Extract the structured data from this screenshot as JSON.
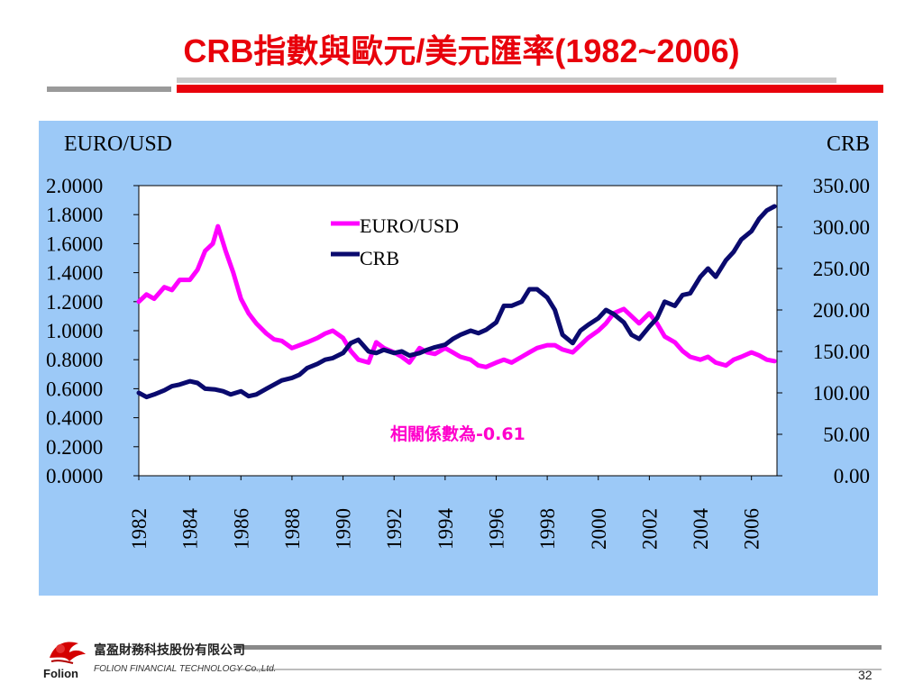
{
  "slide": {
    "title": "CRB指數與歐元/美元匯率(1982~2006)",
    "page_number": "32",
    "company_cn": "富盈財務科技股份有限公司",
    "company_en": "FOLION FINANCIAL TECHNOLOGY Co.,Ltd.",
    "brand": "Folion"
  },
  "colors": {
    "title": "#e8000b",
    "panel_bg": "#9cc9f7",
    "euro_line": "#ff00ff",
    "crb_line": "#0a0a6e",
    "annotation": "#ff00cc"
  },
  "chart_data": {
    "type": "line",
    "left_axis_title": "EURO/USD",
    "right_axis_title": "CRB",
    "left_ticks": [
      "2.0000",
      "1.8000",
      "1.6000",
      "1.4000",
      "1.2000",
      "1.0000",
      "0.8000",
      "0.6000",
      "0.4000",
      "0.2000",
      "0.0000"
    ],
    "right_ticks": [
      "350.00",
      "300.00",
      "250.00",
      "200.00",
      "150.00",
      "100.00",
      "50.00",
      "0.00"
    ],
    "x_ticks": [
      "1982",
      "1984",
      "1986",
      "1988",
      "1990",
      "1992",
      "1994",
      "1996",
      "1998",
      "2000",
      "2002",
      "2004",
      "2006"
    ],
    "left_ylim": [
      0,
      2
    ],
    "right_ylim": [
      0,
      350
    ],
    "xlim": [
      1982,
      2007
    ],
    "legend_position": "top-center-left",
    "annotation": "相關係數為-0.61",
    "series": [
      {
        "name": "EURO/USD",
        "axis": "left",
        "color": "#ff00ff",
        "x": [
          1982.0,
          1982.3,
          1982.6,
          1983.0,
          1983.3,
          1983.6,
          1984.0,
          1984.3,
          1984.6,
          1984.9,
          1985.1,
          1985.4,
          1985.7,
          1986.0,
          1986.3,
          1986.6,
          1987.0,
          1987.3,
          1987.6,
          1988.0,
          1988.3,
          1988.6,
          1989.0,
          1989.3,
          1989.6,
          1990.0,
          1990.3,
          1990.6,
          1991.0,
          1991.3,
          1991.6,
          1992.0,
          1992.3,
          1992.6,
          1993.0,
          1993.3,
          1993.6,
          1994.0,
          1994.3,
          1994.6,
          1995.0,
          1995.3,
          1995.6,
          1996.0,
          1996.3,
          1996.6,
          1997.0,
          1997.3,
          1997.6,
          1998.0,
          1998.3,
          1998.6,
          1999.0,
          1999.3,
          1999.6,
          2000.0,
          2000.3,
          2000.6,
          2001.0,
          2001.3,
          2001.6,
          2002.0,
          2002.3,
          2002.6,
          2003.0,
          2003.3,
          2003.6,
          2004.0,
          2004.3,
          2004.6,
          2005.0,
          2005.3,
          2005.6,
          2006.0,
          2006.3,
          2006.6,
          2006.9
        ],
        "values": [
          1.2,
          1.25,
          1.22,
          1.3,
          1.28,
          1.35,
          1.35,
          1.42,
          1.55,
          1.6,
          1.72,
          1.55,
          1.4,
          1.22,
          1.12,
          1.05,
          0.98,
          0.94,
          0.93,
          0.88,
          0.9,
          0.92,
          0.95,
          0.98,
          1.0,
          0.95,
          0.86,
          0.8,
          0.78,
          0.92,
          0.88,
          0.85,
          0.82,
          0.78,
          0.88,
          0.85,
          0.84,
          0.88,
          0.85,
          0.82,
          0.8,
          0.76,
          0.75,
          0.78,
          0.8,
          0.78,
          0.82,
          0.85,
          0.88,
          0.9,
          0.9,
          0.87,
          0.85,
          0.9,
          0.95,
          1.0,
          1.05,
          1.12,
          1.15,
          1.1,
          1.05,
          1.12,
          1.05,
          0.96,
          0.92,
          0.86,
          0.82,
          0.8,
          0.82,
          0.78,
          0.76,
          0.8,
          0.82,
          0.85,
          0.83,
          0.8,
          0.79
        ]
      },
      {
        "name": "CRB",
        "axis": "right",
        "color": "#0a0a6e",
        "x": [
          1982.0,
          1982.3,
          1982.6,
          1983.0,
          1983.3,
          1983.6,
          1984.0,
          1984.3,
          1984.6,
          1985.0,
          1985.3,
          1985.6,
          1986.0,
          1986.3,
          1986.6,
          1987.0,
          1987.3,
          1987.6,
          1988.0,
          1988.3,
          1988.6,
          1989.0,
          1989.3,
          1989.6,
          1990.0,
          1990.3,
          1990.6,
          1991.0,
          1991.3,
          1991.6,
          1992.0,
          1992.3,
          1992.6,
          1993.0,
          1993.3,
          1993.6,
          1994.0,
          1994.3,
          1994.6,
          1995.0,
          1995.3,
          1995.6,
          1996.0,
          1996.3,
          1996.6,
          1997.0,
          1997.3,
          1997.6,
          1998.0,
          1998.3,
          1998.6,
          1999.0,
          1999.3,
          1999.6,
          2000.0,
          2000.3,
          2000.6,
          2001.0,
          2001.3,
          2001.6,
          2002.0,
          2002.3,
          2002.6,
          2003.0,
          2003.3,
          2003.6,
          2004.0,
          2004.3,
          2004.6,
          2005.0,
          2005.3,
          2005.6,
          2006.0,
          2006.3,
          2006.6,
          2006.9
        ],
        "values": [
          100,
          95,
          98,
          103,
          108,
          110,
          114,
          112,
          105,
          104,
          102,
          98,
          102,
          96,
          98,
          105,
          110,
          115,
          118,
          122,
          130,
          135,
          140,
          142,
          148,
          160,
          164,
          150,
          148,
          152,
          148,
          150,
          145,
          148,
          152,
          155,
          158,
          165,
          170,
          175,
          172,
          176,
          185,
          205,
          205,
          210,
          225,
          225,
          215,
          200,
          170,
          160,
          175,
          182,
          190,
          200,
          195,
          185,
          170,
          165,
          180,
          190,
          210,
          205,
          218,
          220,
          240,
          250,
          240,
          260,
          270,
          285,
          295,
          310,
          320,
          325
        ]
      }
    ]
  }
}
